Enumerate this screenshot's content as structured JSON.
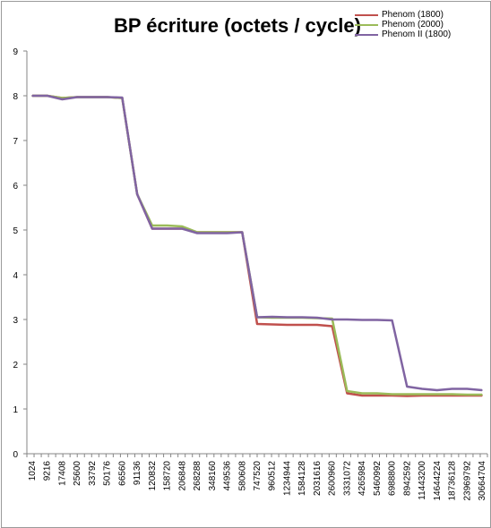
{
  "chart_data": {
    "type": "line",
    "title": "BP écriture (octets / cycle)",
    "xlabel": "",
    "ylabel": "",
    "ylim": [
      0,
      9
    ],
    "yticks": [
      "0",
      "1",
      "2",
      "3",
      "4",
      "5",
      "6",
      "7",
      "8",
      "9"
    ],
    "grid": false,
    "legend_position": "top-right",
    "x_tick_labels": [
      "1024",
      "9216",
      "17408",
      "25600",
      "33792",
      "50176",
      "66560",
      "91136",
      "120832",
      "158720",
      "206848",
      "268288",
      "348160",
      "449536",
      "580608",
      "747520",
      "960512",
      "1234944",
      "1584128",
      "2031616",
      "2600960",
      "3331072",
      "4265984",
      "5460992",
      "6988800",
      "8942592",
      "11443200",
      "14644224",
      "18736128",
      "23969792",
      "30664704"
    ],
    "series": [
      {
        "name": "Phenom (1800)",
        "color": "#c0504d",
        "values": [
          8.0,
          8.0,
          7.95,
          7.97,
          7.97,
          7.97,
          7.95,
          5.8,
          5.03,
          5.03,
          5.03,
          4.95,
          4.95,
          4.95,
          4.95,
          2.9,
          2.89,
          2.88,
          2.88,
          2.88,
          2.85,
          1.35,
          1.3,
          1.3,
          1.3,
          1.29,
          1.3,
          1.3,
          1.3,
          1.3,
          1.3
        ]
      },
      {
        "name": "Phenom (2000)",
        "color": "#9bbb59",
        "values": [
          8.0,
          8.0,
          7.95,
          7.97,
          7.97,
          7.97,
          7.95,
          5.8,
          5.1,
          5.1,
          5.08,
          4.95,
          4.95,
          4.95,
          4.95,
          3.05,
          3.04,
          3.04,
          3.04,
          3.03,
          3.02,
          1.4,
          1.35,
          1.35,
          1.33,
          1.33,
          1.33,
          1.33,
          1.33,
          1.32,
          1.32
        ]
      },
      {
        "name": "Phenom II (1800)",
        "color": "#8064a2",
        "values": [
          8.0,
          8.0,
          7.92,
          7.97,
          7.97,
          7.97,
          7.96,
          5.8,
          5.03,
          5.03,
          5.03,
          4.93,
          4.93,
          4.93,
          4.95,
          3.05,
          3.06,
          3.05,
          3.05,
          3.04,
          3.0,
          3.0,
          2.99,
          2.99,
          2.98,
          1.5,
          1.45,
          1.42,
          1.45,
          1.45,
          1.42
        ]
      }
    ]
  }
}
